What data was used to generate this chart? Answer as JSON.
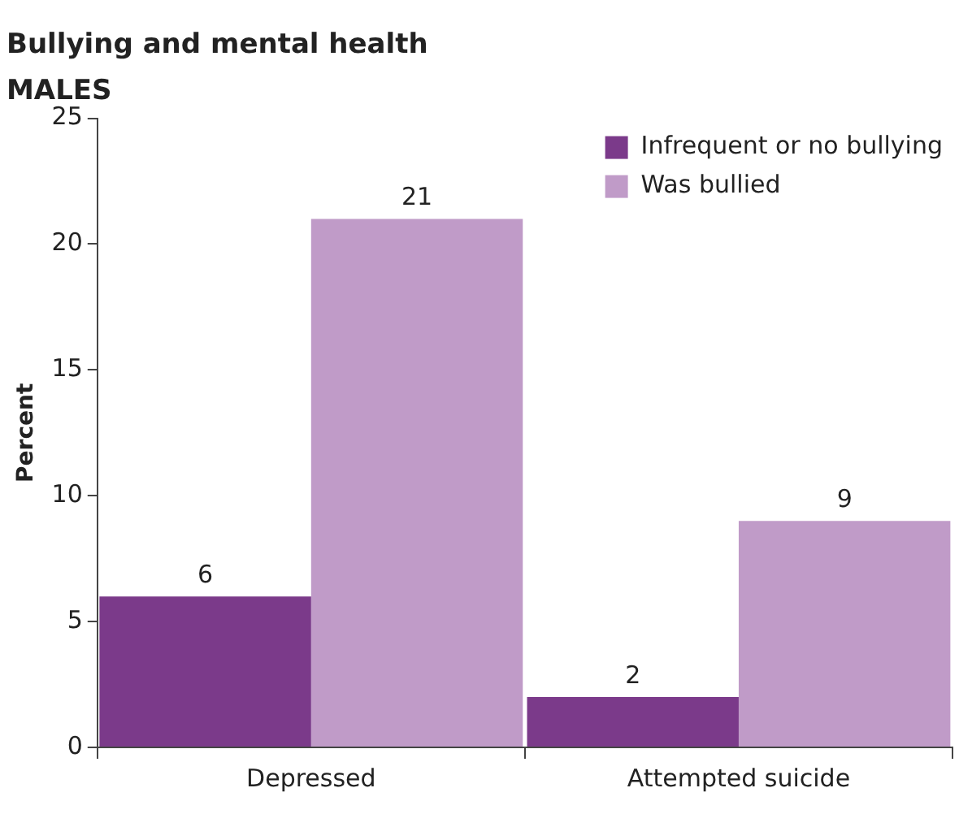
{
  "chart_data": {
    "type": "bar",
    "title": "Bullying and mental health",
    "subtitle": "MALES",
    "ylabel": "Percent",
    "categories": [
      "Depressed",
      "Attempted suicide"
    ],
    "series": [
      {
        "name": "Infrequent or no bullying",
        "color": "#7b3a8a",
        "values": [
          6,
          2
        ]
      },
      {
        "name": "Was bullied",
        "color": "#c09bc8",
        "values": [
          21,
          9
        ]
      }
    ],
    "ylim": [
      0,
      25
    ],
    "yticks": [
      0,
      5,
      10,
      15,
      20,
      25
    ],
    "grid": false,
    "legend": "top right",
    "data_labels": true
  }
}
